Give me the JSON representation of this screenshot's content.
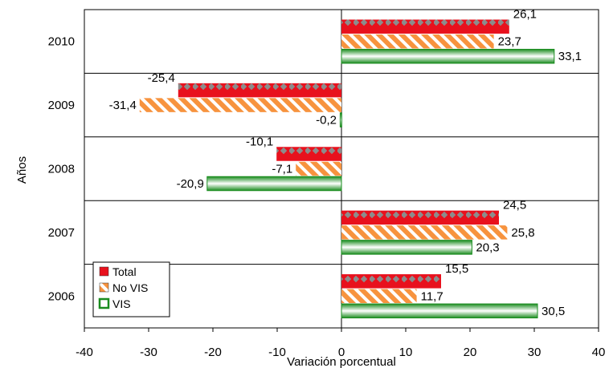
{
  "chart_data": {
    "type": "bar",
    "orientation": "horizontal",
    "title": "",
    "xlabel": "Variación porcentual",
    "ylabel": "Años",
    "categories": [
      "2010",
      "2009",
      "2008",
      "2007",
      "2006"
    ],
    "series": [
      {
        "name": "Total",
        "values": [
          26.1,
          -25.4,
          -10.1,
          24.5,
          15.5
        ],
        "labels": [
          "26,1",
          "-25,4",
          "-10,1",
          "24,5",
          "15,5"
        ],
        "color": "#e8111d"
      },
      {
        "name": "No VIS",
        "values": [
          23.7,
          -31.4,
          -7.1,
          25.8,
          11.7
        ],
        "labels": [
          "23,7",
          "-31,4",
          "-7,1",
          "25,8",
          "11,7"
        ],
        "color": "#f7933e"
      },
      {
        "name": "VIS",
        "values": [
          33.1,
          -0.2,
          -20.9,
          20.3,
          30.5
        ],
        "labels": [
          "33,1",
          "-0,2",
          "-20,9",
          "20,3",
          "30,5"
        ],
        "color": "#1a8c1f"
      }
    ],
    "xlim": [
      -40,
      40
    ],
    "xticks": [
      -40,
      -30,
      -20,
      -10,
      0,
      10,
      20,
      30,
      40
    ],
    "grid": "horizontal category separators",
    "legend": "bottom-left"
  }
}
